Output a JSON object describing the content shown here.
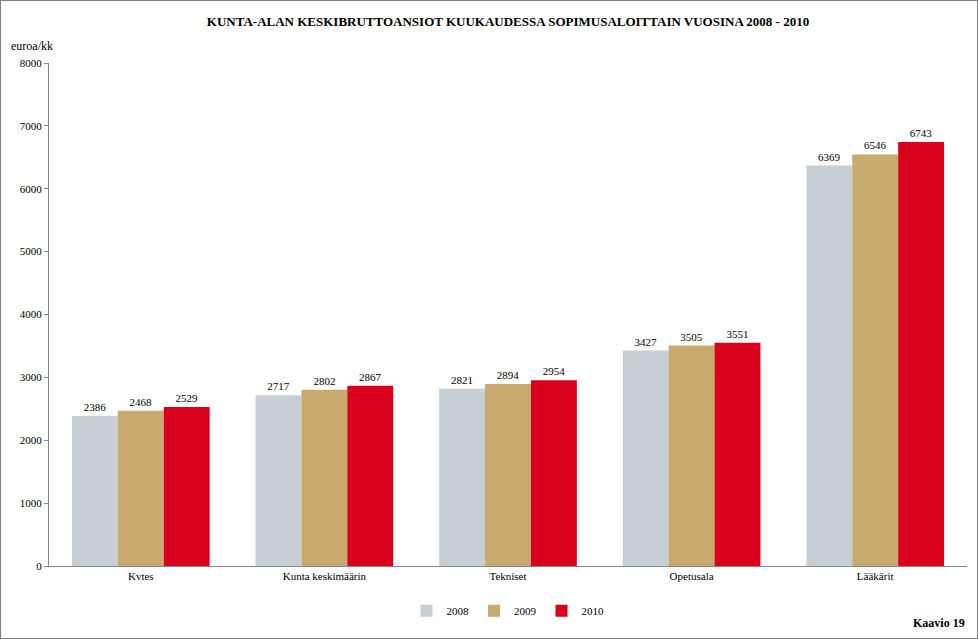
{
  "chart_data": {
    "type": "bar",
    "title": "KUNTA-ALAN KESKIBRUTTOANSIOT KUUKAUDESSA SOPIMUSALOITTAIN VUOSINA 2008 - 2010",
    "ylabel": "euroa/kk",
    "annotations": [
      "Kaavio 19"
    ],
    "categories": [
      "Kvtes",
      "Kunta keskimäärin",
      "Tekniset",
      "Opetusala",
      "Lääkärit"
    ],
    "series": [
      {
        "name": "2008",
        "color": "#c8cfd4",
        "values": [
          2386,
          2717,
          2821,
          3427,
          6369
        ]
      },
      {
        "name": "2009",
        "color": "#c8a96e",
        "values": [
          2468,
          2802,
          2894,
          3505,
          6546
        ]
      },
      {
        "name": "2010",
        "color": "#d9001b",
        "values": [
          2529,
          2867,
          2954,
          3551,
          6743
        ]
      }
    ],
    "ylim": [
      0,
      8000
    ],
    "yticks": [
      0,
      1000,
      2000,
      3000,
      4000,
      5000,
      6000,
      7000,
      8000
    ],
    "grid": false,
    "legend": "bottom",
    "data_labels": true
  }
}
